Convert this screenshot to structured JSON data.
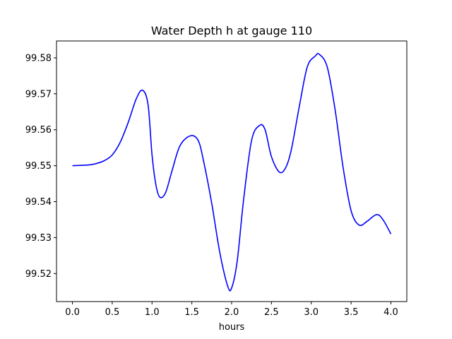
{
  "chart_data": {
    "type": "line",
    "title": "Water Depth h at gauge 110",
    "xlabel": "hours",
    "ylabel": "",
    "xlim": [
      -0.2,
      4.2
    ],
    "ylim": [
      99.5122,
      99.5847
    ],
    "grid": false,
    "legend": "none",
    "x_ticks": [
      0.0,
      0.5,
      1.0,
      1.5,
      2.0,
      2.5,
      3.0,
      3.5,
      4.0
    ],
    "x_tick_labels": [
      "0.0",
      "0.5",
      "1.0",
      "1.5",
      "2.0",
      "2.5",
      "3.0",
      "3.5",
      "4.0"
    ],
    "y_ticks": [
      99.52,
      99.53,
      99.54,
      99.55,
      99.56,
      99.57,
      99.58
    ],
    "y_tick_labels": [
      "99.52",
      "99.53",
      "99.54",
      "99.55",
      "99.56",
      "99.57",
      "99.58"
    ],
    "series": [
      {
        "color": "#0000ff",
        "x": [
          0.0,
          0.2,
          0.3,
          0.4,
          0.5,
          0.6,
          0.7,
          0.8,
          0.88,
          0.95,
          1.0,
          1.05,
          1.1,
          1.17,
          1.25,
          1.35,
          1.48,
          1.58,
          1.65,
          1.75,
          1.85,
          1.95,
          2.0,
          2.07,
          2.15,
          2.25,
          2.35,
          2.42,
          2.5,
          2.6,
          2.68,
          2.75,
          2.85,
          2.95,
          3.05,
          3.1,
          3.2,
          3.3,
          3.4,
          3.5,
          3.6,
          3.7,
          3.82,
          3.9,
          4.0
        ],
        "y": [
          99.55,
          99.5502,
          99.5506,
          99.5514,
          99.553,
          99.5565,
          99.562,
          99.5685,
          99.571,
          99.567,
          99.553,
          99.5445,
          99.5412,
          99.5425,
          99.5485,
          99.5555,
          99.5583,
          99.557,
          99.551,
          99.5395,
          99.526,
          99.5165,
          99.516,
          99.5235,
          99.5405,
          99.557,
          99.5612,
          99.56,
          99.5525,
          99.5482,
          99.5495,
          99.5545,
          99.5665,
          99.5775,
          99.5805,
          99.581,
          99.5775,
          99.5655,
          99.5495,
          99.5375,
          99.5335,
          99.5345,
          99.5364,
          99.535,
          99.531
        ]
      }
    ]
  }
}
